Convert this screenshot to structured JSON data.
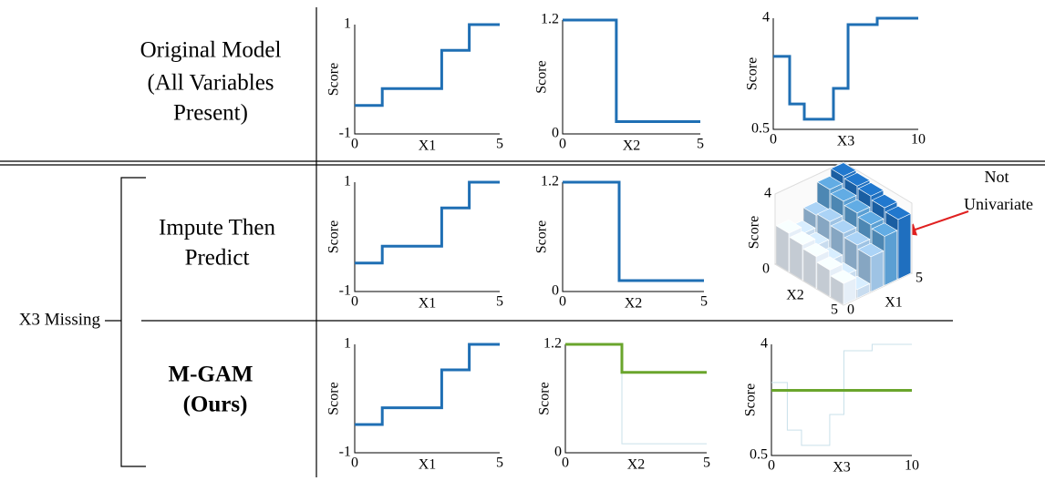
{
  "row_labels": [
    [
      "Original Model",
      "(All Variables",
      "Present)"
    ],
    [
      "Impute Then",
      "Predict"
    ],
    [
      "M-GAM",
      "(Ours)"
    ]
  ],
  "group_label": "X3 Missing",
  "annotation": [
    "Not",
    "Univariate"
  ],
  "chart_data": [
    {
      "type": "line",
      "xlabel": "X1",
      "ylabel": "Score",
      "xlim": [
        0,
        5
      ],
      "ylim": [
        -1,
        1
      ],
      "xticks": [
        0,
        5
      ],
      "yticks": [
        -1,
        1
      ],
      "series": [
        {
          "color": "#1f6fb4",
          "line_width": 3,
          "x": [
            0,
            0.95,
            0.95,
            3,
            3,
            3.95,
            3.95,
            5
          ],
          "values": [
            -0.48,
            -0.48,
            -0.17,
            -0.17,
            0.53,
            0.53,
            1.0,
            1.0
          ]
        }
      ]
    },
    {
      "type": "line",
      "xlabel": "X2",
      "ylabel": "Score",
      "xlim": [
        0,
        5
      ],
      "ylim": [
        0,
        1.2
      ],
      "xticks": [
        0,
        5
      ],
      "yticks": [
        0,
        1.2
      ],
      "series": [
        {
          "color": "#1f6fb4",
          "line_width": 3,
          "x": [
            0,
            1.95,
            1.95,
            5
          ],
          "values": [
            1.2,
            1.2,
            0.13,
            0.13
          ]
        }
      ]
    },
    {
      "type": "line",
      "xlabel": "X3",
      "ylabel": "Score",
      "xlim": [
        0,
        10
      ],
      "ylim": [
        0.5,
        4
      ],
      "xticks": [
        0,
        10
      ],
      "yticks": [
        0.5,
        4
      ],
      "series": [
        {
          "color": "#1f6fb4",
          "line_width": 3,
          "x": [
            0,
            1.13,
            1.13,
            2.14,
            2.14,
            4.15,
            4.15,
            5.16,
            5.16,
            7.17,
            7.17,
            10
          ],
          "values": [
            2.8,
            2.8,
            1.3,
            1.3,
            0.82,
            0.82,
            1.79,
            1.79,
            3.8,
            3.8,
            4.0,
            4.0
          ]
        }
      ]
    },
    {
      "type": "line",
      "xlabel": "X1",
      "ylabel": "Score",
      "xlim": [
        0,
        5
      ],
      "ylim": [
        -1,
        1
      ],
      "xticks": [
        0,
        5
      ],
      "yticks": [
        -1,
        1
      ],
      "series": [
        {
          "color": "#1f6fb4",
          "line_width": 3,
          "x": [
            0,
            0.95,
            0.95,
            3,
            3,
            3.95,
            3.95,
            5
          ],
          "values": [
            -0.48,
            -0.48,
            -0.17,
            -0.17,
            0.53,
            0.53,
            1.0,
            1.0
          ]
        }
      ]
    },
    {
      "type": "line",
      "xlabel": "X2",
      "ylabel": "Score",
      "xlim": [
        0,
        5
      ],
      "ylim": [
        0,
        1.2
      ],
      "xticks": [
        0,
        5
      ],
      "yticks": [
        0,
        1.2
      ],
      "series": [
        {
          "color": "#1f6fb4",
          "line_width": 3,
          "x": [
            0,
            2.0,
            2.0,
            5
          ],
          "values": [
            1.2,
            1.2,
            0.12,
            0.12
          ]
        }
      ]
    },
    {
      "type": "bar3d",
      "xlabel": "X1",
      "ylabel": "X2",
      "zlabel": "Score",
      "xlim": [
        0,
        5
      ],
      "ylim": [
        0,
        5
      ],
      "zlim": [
        0,
        4
      ],
      "xticks": [
        0,
        5
      ],
      "yticks": [
        0,
        5
      ],
      "zticks": [
        4
      ],
      "colors": [
        "#e6eff8",
        "#c8dcef",
        "#9ec3e4",
        "#5b9fd3",
        "#1f6fbf"
      ],
      "values": [
        [
          2.2,
          1.8,
          2.5,
          3.6,
          4.0
        ],
        [
          2.0,
          1.6,
          2.6,
          3.4,
          3.9
        ],
        [
          1.8,
          1.2,
          2.4,
          3.2,
          3.8
        ],
        [
          1.5,
          0.8,
          2.2,
          3.0,
          3.6
        ],
        [
          1.2,
          0.5,
          2.0,
          2.8,
          3.4
        ]
      ]
    },
    {
      "type": "line",
      "xlabel": "X1",
      "ylabel": "Score",
      "xlim": [
        0,
        5
      ],
      "ylim": [
        -1,
        1
      ],
      "xticks": [
        0,
        5
      ],
      "yticks": [
        -1,
        1
      ],
      "series": [
        {
          "color": "#1f6fb4",
          "line_width": 3,
          "x": [
            0,
            0.95,
            0.95,
            3,
            3,
            3.95,
            3.95,
            5
          ],
          "values": [
            -0.48,
            -0.48,
            -0.17,
            -0.17,
            0.53,
            0.53,
            1.0,
            1.0
          ]
        }
      ]
    },
    {
      "type": "line",
      "xlabel": "X2",
      "ylabel": "Score",
      "xlim": [
        0,
        5
      ],
      "ylim": [
        0,
        1.2
      ],
      "xticks": [
        0,
        5
      ],
      "yticks": [
        0,
        1.2
      ],
      "series": [
        {
          "color": "#c9e0ea",
          "line_width": 1,
          "x": [
            0,
            2.0,
            2.0,
            5
          ],
          "values": [
            1.2,
            1.2,
            0.1,
            0.1
          ]
        },
        {
          "color": "#6aa52c",
          "line_width": 3,
          "x": [
            0,
            2.0,
            2.0,
            5
          ],
          "values": [
            1.2,
            1.2,
            0.89,
            0.89
          ]
        }
      ]
    },
    {
      "type": "line",
      "xlabel": "X3",
      "ylabel": "Score",
      "xlim": [
        0,
        10
      ],
      "ylim": [
        0.5,
        4
      ],
      "xticks": [
        0,
        10
      ],
      "yticks": [
        0.5,
        4
      ],
      "series": [
        {
          "color": "#c9e0ea",
          "line_width": 1,
          "x": [
            0,
            1.13,
            1.13,
            2.14,
            2.14,
            4.15,
            4.15,
            5.16,
            5.16,
            7.17,
            7.17,
            10
          ],
          "values": [
            2.8,
            2.8,
            1.3,
            1.3,
            0.82,
            0.82,
            1.79,
            1.79,
            3.8,
            3.8,
            4.0,
            4.0
          ]
        },
        {
          "color": "#6aa52c",
          "line_width": 3,
          "x": [
            0,
            10
          ],
          "values": [
            2.55,
            2.55
          ]
        }
      ]
    }
  ]
}
